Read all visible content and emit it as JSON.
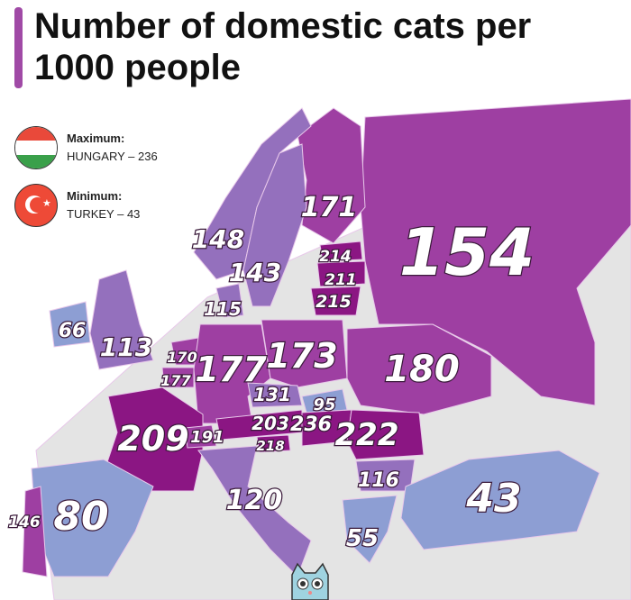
{
  "title_line1": "Number of domestic cats per",
  "title_line2": "1000 people",
  "legend": {
    "max_label": "Maximum:",
    "max_value": "HUNGARY – 236",
    "min_label": "Minimum:",
    "min_value": "TURKEY – 43"
  },
  "colors": {
    "very_high": "#8b1683",
    "high": "#9e3fa2",
    "mid": "#9470bd",
    "low": "#8d9ed3",
    "land": "#e4e4e4"
  },
  "countries": [
    {
      "name": "Russia",
      "value": "154"
    },
    {
      "name": "Finland",
      "value": "171"
    },
    {
      "name": "Norway",
      "value": "148"
    },
    {
      "name": "Sweden",
      "value": "143"
    },
    {
      "name": "Denmark",
      "value": "115"
    },
    {
      "name": "Estonia",
      "value": "214"
    },
    {
      "name": "Latvia",
      "value": "211"
    },
    {
      "name": "Lithuania",
      "value": "215"
    },
    {
      "name": "Ireland",
      "value": "66"
    },
    {
      "name": "United Kingdom",
      "value": "113"
    },
    {
      "name": "Netherlands",
      "value": "170"
    },
    {
      "name": "Belgium",
      "value": "177"
    },
    {
      "name": "Germany",
      "value": "177"
    },
    {
      "name": "Poland",
      "value": "173"
    },
    {
      "name": "Ukraine",
      "value": "180"
    },
    {
      "name": "Czechia",
      "value": "131"
    },
    {
      "name": "Slovakia",
      "value": "95"
    },
    {
      "name": "France",
      "value": "209"
    },
    {
      "name": "Switzerland",
      "value": "191"
    },
    {
      "name": "Austria",
      "value": "203"
    },
    {
      "name": "Slovenia",
      "value": "218"
    },
    {
      "name": "Hungary",
      "value": "236"
    },
    {
      "name": "Romania",
      "value": "222"
    },
    {
      "name": "Bulgaria",
      "value": "116"
    },
    {
      "name": "Italy",
      "value": "120"
    },
    {
      "name": "Spain",
      "value": "80"
    },
    {
      "name": "Portugal",
      "value": "146"
    },
    {
      "name": "Greece",
      "value": "55"
    },
    {
      "name": "Turkey",
      "value": "43"
    }
  ]
}
